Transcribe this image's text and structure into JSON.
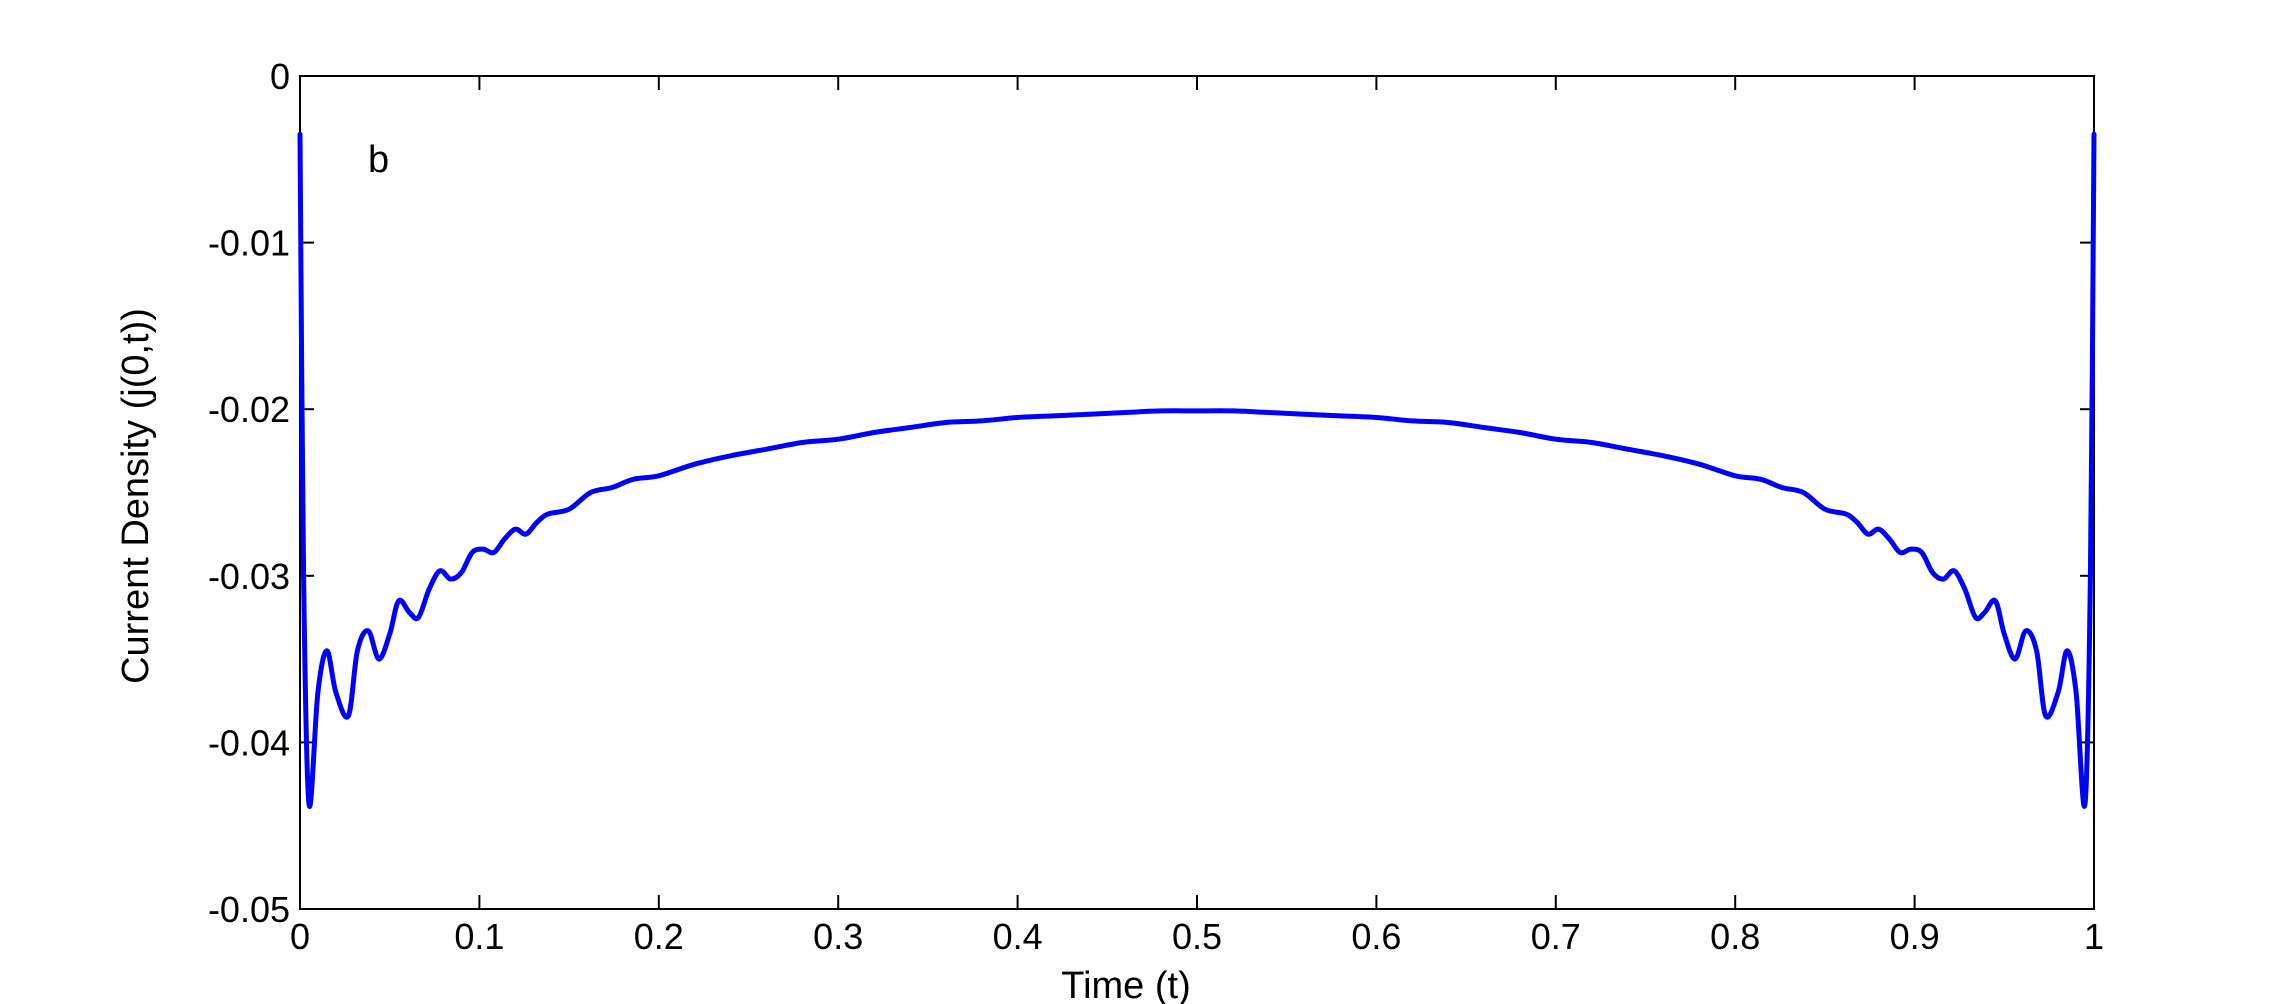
{
  "chart_data": {
    "type": "line",
    "panel_label": "b",
    "xlabel": "Time (t)",
    "ylabel": "Current Density (j(0,t))",
    "xlim": [
      0,
      1
    ],
    "ylim": [
      -0.05,
      0
    ],
    "xticks": [
      0,
      0.1,
      0.2,
      0.3,
      0.4,
      0.5,
      0.6,
      0.7,
      0.8,
      0.9,
      1
    ],
    "xtick_labels": [
      "0",
      "0.1",
      "0.2",
      "0.3",
      "0.4",
      "0.5",
      "0.6",
      "0.7",
      "0.8",
      "0.9",
      "1"
    ],
    "yticks": [
      0,
      -0.01,
      -0.02,
      -0.03,
      -0.04,
      -0.05
    ],
    "ytick_labels": [
      "0",
      "-0.01",
      "-0.02",
      "-0.03",
      "-0.04",
      "-0.05"
    ],
    "grid": false,
    "line_color": "#0000ff",
    "series": [
      {
        "x": [
          0,
          0.002,
          0.005,
          0.01,
          0.015,
          0.02,
          0.027,
          0.032,
          0.038,
          0.044,
          0.05,
          0.055,
          0.061,
          0.066,
          0.072,
          0.078,
          0.084,
          0.09,
          0.096,
          0.102,
          0.108,
          0.114,
          0.12,
          0.126,
          0.132,
          0.138,
          0.15,
          0.162,
          0.174,
          0.186,
          0.2,
          0.22,
          0.24,
          0.26,
          0.28,
          0.3,
          0.32,
          0.34,
          0.36,
          0.38,
          0.4,
          0.42,
          0.44,
          0.46,
          0.48,
          0.5,
          0.52,
          0.54,
          0.56,
          0.58,
          0.6,
          0.62,
          0.64,
          0.66,
          0.68,
          0.7,
          0.72,
          0.74,
          0.76,
          0.78,
          0.8,
          0.814,
          0.826,
          0.838,
          0.85,
          0.862,
          0.868,
          0.874,
          0.88,
          0.886,
          0.892,
          0.898,
          0.904,
          0.91,
          0.916,
          0.922,
          0.928,
          0.934,
          0.939,
          0.945,
          0.95,
          0.956,
          0.962,
          0.968,
          0.973,
          0.98,
          0.985,
          0.99,
          0.995,
          0.998,
          1
        ],
        "y": [
          -0.0035,
          -0.03,
          -0.0437,
          -0.037,
          -0.0345,
          -0.037,
          -0.0384,
          -0.0345,
          -0.0333,
          -0.035,
          -0.0335,
          -0.0315,
          -0.0322,
          -0.0325,
          -0.0308,
          -0.0297,
          -0.0302,
          -0.0298,
          -0.0286,
          -0.0284,
          -0.0286,
          -0.0278,
          -0.0272,
          -0.0275,
          -0.0268,
          -0.0263,
          -0.026,
          -0.025,
          -0.0247,
          -0.0242,
          -0.024,
          -0.0233,
          -0.0228,
          -0.0224,
          -0.022,
          -0.0218,
          -0.0214,
          -0.0211,
          -0.0208,
          -0.0207,
          -0.0205,
          -0.0204,
          -0.0203,
          -0.0202,
          -0.0201,
          -0.0201,
          -0.0201,
          -0.0202,
          -0.0203,
          -0.0204,
          -0.0205,
          -0.0207,
          -0.0208,
          -0.0211,
          -0.0214,
          -0.0218,
          -0.022,
          -0.0224,
          -0.0228,
          -0.0233,
          -0.024,
          -0.0242,
          -0.0247,
          -0.025,
          -0.026,
          -0.0263,
          -0.0268,
          -0.0275,
          -0.0272,
          -0.0278,
          -0.0286,
          -0.0284,
          -0.0286,
          -0.0298,
          -0.0302,
          -0.0297,
          -0.0308,
          -0.0325,
          -0.0322,
          -0.0315,
          -0.0335,
          -0.035,
          -0.0333,
          -0.0345,
          -0.0384,
          -0.037,
          -0.0345,
          -0.037,
          -0.0437,
          -0.03,
          -0.0035
        ]
      }
    ]
  }
}
